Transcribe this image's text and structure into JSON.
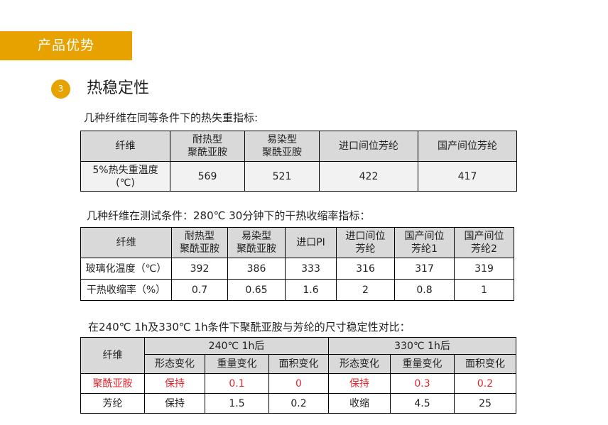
{
  "banner": "产品优势",
  "section": {
    "number": "3",
    "title": "热稳定性"
  },
  "table1": {
    "caption": "几种纤维在同等条件下的热失重指标:",
    "headers": [
      "纤维",
      "耐热型\n聚酰亚胺",
      "易染型\n聚酰亚胺",
      "进口间位芳纶",
      "国产间位芳纶"
    ],
    "rows": [
      [
        "5%热失重温度\n(℃)",
        "569",
        "521",
        "422",
        "417"
      ]
    ]
  },
  "table2": {
    "caption": "几种纤维在测试条件：280℃ 30分钟下的干热收缩率指标：",
    "headers": [
      "纤维",
      "耐热型\n聚酰亚胺",
      "易染型\n聚酰亚胺",
      "进口PI",
      "进口间位\n芳纶",
      "国产间位\n芳纶1",
      "国产间位\n芳纶2"
    ],
    "rows": [
      [
        "玻璃化温度（℃）",
        "392",
        "386",
        "333",
        "316",
        "317",
        "319"
      ],
      [
        "干热收缩率（%）",
        "0.7",
        "0.65",
        "1.6",
        "2",
        "0.8",
        "1"
      ]
    ]
  },
  "table3": {
    "caption": "在240℃ 1h及330℃ 1h条件下聚酰亚胺与芳纶的尺寸稳定性对比：",
    "corner": "纤维",
    "groups": [
      "240℃ 1h后",
      "330℃ 1h后"
    ],
    "subheaders": [
      "形态变化",
      "重量变化",
      "面积变化",
      "形态变化",
      "重量变化",
      "面积变化"
    ],
    "rows": [
      [
        "聚酰亚胺",
        "保持",
        "0.1",
        "0",
        "保持",
        "0.3",
        "0.2"
      ],
      [
        "芳纶",
        "保持",
        "1.5",
        "0.2",
        "收缩",
        "4.5",
        "25"
      ]
    ],
    "highlight_color": "#e0262c"
  },
  "colors": {
    "accent": "#e8a200",
    "header_bg": "#d9d9d9"
  }
}
